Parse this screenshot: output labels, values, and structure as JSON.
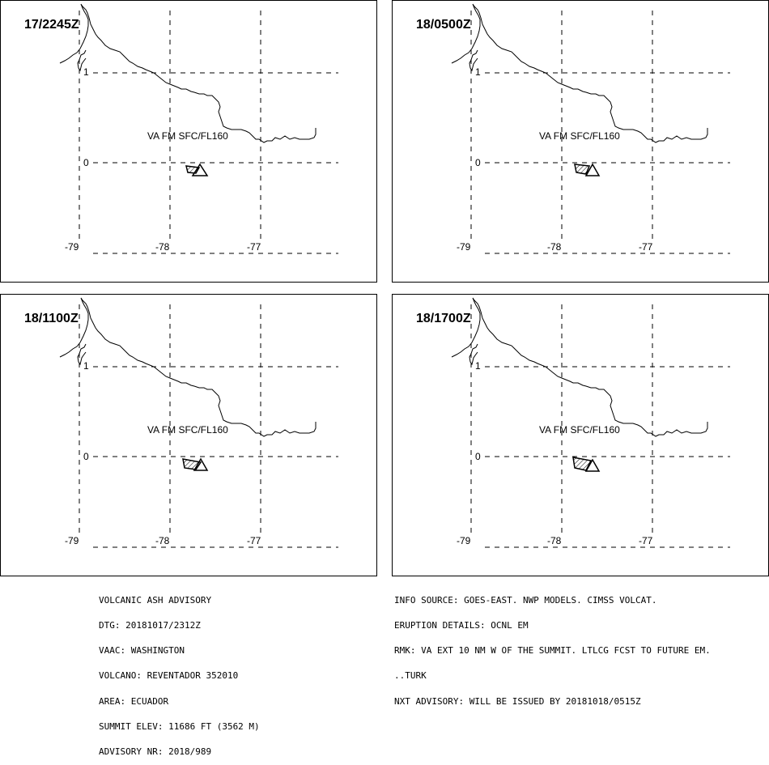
{
  "panels": [
    {
      "time": "17/2245Z",
      "ash_label": "VA FM SFC/FL160"
    },
    {
      "time": "18/0500Z",
      "ash_label": "VA FM SFC/FL160"
    },
    {
      "time": "18/1100Z",
      "ash_label": "VA FM SFC/FL160"
    },
    {
      "time": "18/1700Z",
      "ash_label": "VA FM SFC/FL160"
    }
  ],
  "grid": {
    "lat_labels": [
      "1",
      "0"
    ],
    "lon_labels": [
      "-79",
      "-78",
      "-77"
    ]
  },
  "advisory": {
    "left": [
      "VOLCANIC ASH ADVISORY",
      "DTG: 20181017/2312Z",
      "VAAC: WASHINGTON",
      "VOLCANO: REVENTADOR 352010",
      "AREA: ECUADOR",
      "SUMMIT ELEV: 11686 FT (3562 M)",
      "ADVISORY NR: 2018/989"
    ],
    "right": [
      "INFO SOURCE: GOES-EAST. NWP MODELS. CIMSS VOLCAT.",
      "ERUPTION DETAILS: OCNL EM",
      "RMK: VA EXT 10 NM W OF THE SUMMIT. LTLCG FCST TO FUTURE EM.",
      "..TURK",
      "NXT ADVISORY: WILL BE ISSUED BY 20181018/0515Z"
    ]
  }
}
